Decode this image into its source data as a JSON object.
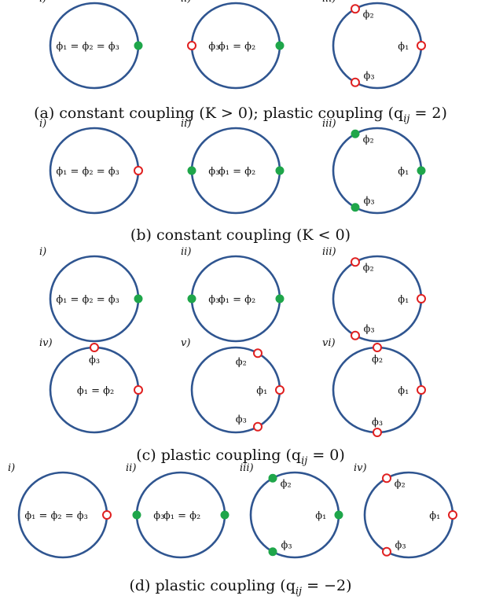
{
  "colors": {
    "circle": "#2f5590",
    "stable": "#1fa64a",
    "unstable": "#e02020"
  },
  "phi_sym": "φ",
  "sections": [
    {
      "caption": "(a) constant coupling (K > 0); plastic coupling (q",
      "caption_sub": "ij",
      "caption_end": " = 2)",
      "panels": [
        {
          "label": "i)",
          "points": [
            {
              "angle": 0,
              "kind": "stable"
            }
          ],
          "labels": [
            {
              "text": "ϕ₁ = ϕ₂ = ϕ₃",
              "angle": 180,
              "r": 0.15
            }
          ]
        },
        {
          "label": "ii)",
          "points": [
            {
              "angle": 180,
              "kind": "unstable"
            },
            {
              "angle": 0,
              "kind": "stable"
            }
          ],
          "labels": [
            {
              "text": "ϕ₃",
              "angle": 180,
              "r": 0.62
            },
            {
              "text": "ϕ₁ = ϕ₂",
              "angle": 0,
              "r": 0.45
            }
          ]
        },
        {
          "label": "iii)",
          "points": [
            {
              "angle": 120,
              "kind": "unstable"
            },
            {
              "angle": 0,
              "kind": "unstable"
            },
            {
              "angle": 240,
              "kind": "unstable"
            }
          ],
          "labels": [
            {
              "text": "ϕ₂",
              "angle": 105,
              "r": 0.78
            },
            {
              "text": "ϕ₁",
              "angle": 0,
              "r": 0.72
            },
            {
              "text": "ϕ₃",
              "angle": 255,
              "r": 0.72
            }
          ]
        }
      ]
    },
    {
      "caption": "(b) constant coupling (K < 0)",
      "caption_sub": "",
      "caption_end": "",
      "panels": [
        {
          "label": "i)",
          "points": [
            {
              "angle": 0,
              "kind": "unstable"
            }
          ],
          "labels": [
            {
              "text": "ϕ₁ = ϕ₂ = ϕ₃",
              "angle": 180,
              "r": 0.15
            }
          ]
        },
        {
          "label": "ii)",
          "points": [
            {
              "angle": 180,
              "kind": "stable"
            },
            {
              "angle": 0,
              "kind": "stable"
            }
          ],
          "labels": [
            {
              "text": "ϕ₃",
              "angle": 180,
              "r": 0.62
            },
            {
              "text": "ϕ₁ = ϕ₂",
              "angle": 0,
              "r": 0.45
            }
          ]
        },
        {
          "label": "iii)",
          "points": [
            {
              "angle": 120,
              "kind": "stable"
            },
            {
              "angle": 0,
              "kind": "stable"
            },
            {
              "angle": 240,
              "kind": "stable"
            }
          ],
          "labels": [
            {
              "text": "ϕ₂",
              "angle": 105,
              "r": 0.78
            },
            {
              "text": "ϕ₁",
              "angle": 0,
              "r": 0.72
            },
            {
              "text": "ϕ₃",
              "angle": 255,
              "r": 0.72
            }
          ]
        }
      ]
    },
    {
      "caption": "(c) plastic coupling (q",
      "caption_sub": "ij",
      "caption_end": " = 0)",
      "panels": [
        {
          "label": "i)",
          "points": [
            {
              "angle": 0,
              "kind": "stable"
            }
          ],
          "labels": [
            {
              "text": "ϕ₁ = ϕ₂ = ϕ₃",
              "angle": 180,
              "r": 0.15
            }
          ]
        },
        {
          "label": "ii)",
          "points": [
            {
              "angle": 180,
              "kind": "stable"
            },
            {
              "angle": 0,
              "kind": "stable"
            }
          ],
          "labels": [
            {
              "text": "ϕ₃",
              "angle": 180,
              "r": 0.62
            },
            {
              "text": "ϕ₁ = ϕ₂",
              "angle": 0,
              "r": 0.45
            }
          ]
        },
        {
          "label": "iii)",
          "points": [
            {
              "angle": 120,
              "kind": "unstable"
            },
            {
              "angle": 0,
              "kind": "unstable"
            },
            {
              "angle": 240,
              "kind": "unstable"
            }
          ],
          "labels": [
            {
              "text": "ϕ₂",
              "angle": 105,
              "r": 0.78
            },
            {
              "text": "ϕ₁",
              "angle": 0,
              "r": 0.72
            },
            {
              "text": "ϕ₃",
              "angle": 255,
              "r": 0.72
            }
          ]
        },
        {
          "label": "iv)",
          "points": [
            {
              "angle": 90,
              "kind": "unstable"
            },
            {
              "angle": 0,
              "kind": "unstable"
            }
          ],
          "labels": [
            {
              "text": "ϕ₃",
              "angle": 90,
              "r": 0.72
            },
            {
              "text": "ϕ₁ = ϕ₂",
              "angle": 0,
              "r": 0.45
            }
          ]
        },
        {
          "label": "v)",
          "points": [
            {
              "angle": 60,
              "kind": "unstable"
            },
            {
              "angle": 0,
              "kind": "unstable"
            },
            {
              "angle": 300,
              "kind": "unstable"
            }
          ],
          "labels": [
            {
              "text": "ϕ₂",
              "angle": 70,
              "r": 0.72
            },
            {
              "text": "ϕ₁",
              "angle": 0,
              "r": 0.72
            },
            {
              "text": "ϕ₃",
              "angle": 290,
              "r": 0.72
            }
          ]
        },
        {
          "label": "vi)",
          "points": [
            {
              "angle": 90,
              "kind": "unstable"
            },
            {
              "angle": 0,
              "kind": "unstable"
            },
            {
              "angle": 270,
              "kind": "unstable"
            }
          ],
          "labels": [
            {
              "text": "ϕ₂",
              "angle": 90,
              "r": 0.74
            },
            {
              "text": "ϕ₁",
              "angle": 0,
              "r": 0.72
            },
            {
              "text": "ϕ₃",
              "angle": 270,
              "r": 0.74
            }
          ]
        }
      ]
    },
    {
      "caption": "(d) plastic coupling (q",
      "caption_sub": "ij",
      "caption_end": " = −2)",
      "panels": [
        {
          "label": "i)",
          "points": [
            {
              "angle": 0,
              "kind": "unstable"
            }
          ],
          "labels": [
            {
              "text": "ϕ₁ = ϕ₂ = ϕ₃",
              "angle": 180,
              "r": 0.15
            }
          ]
        },
        {
          "label": "ii)",
          "points": [
            {
              "angle": 180,
              "kind": "stable"
            },
            {
              "angle": 0,
              "kind": "stable"
            }
          ],
          "labels": [
            {
              "text": "ϕ₃",
              "angle": 180,
              "r": 0.62
            },
            {
              "text": "ϕ₁ = ϕ₂",
              "angle": 0,
              "r": 0.45
            }
          ]
        },
        {
          "label": "iii)",
          "points": [
            {
              "angle": 120,
              "kind": "stable"
            },
            {
              "angle": 0,
              "kind": "stable"
            },
            {
              "angle": 240,
              "kind": "stable"
            }
          ],
          "labels": [
            {
              "text": "ϕ₂",
              "angle": 105,
              "r": 0.78
            },
            {
              "text": "ϕ₁",
              "angle": 0,
              "r": 0.72
            },
            {
              "text": "ϕ₃",
              "angle": 255,
              "r": 0.72
            }
          ]
        },
        {
          "label": "iv)",
          "points": [
            {
              "angle": 120,
              "kind": "unstable"
            },
            {
              "angle": 0,
              "kind": "unstable"
            },
            {
              "angle": 240,
              "kind": "unstable"
            }
          ],
          "labels": [
            {
              "text": "ϕ₂",
              "angle": 105,
              "r": 0.78
            },
            {
              "text": "ϕ₁",
              "angle": 0,
              "r": 0.72
            },
            {
              "text": "ϕ₃",
              "angle": 255,
              "r": 0.72
            }
          ]
        }
      ]
    }
  ]
}
